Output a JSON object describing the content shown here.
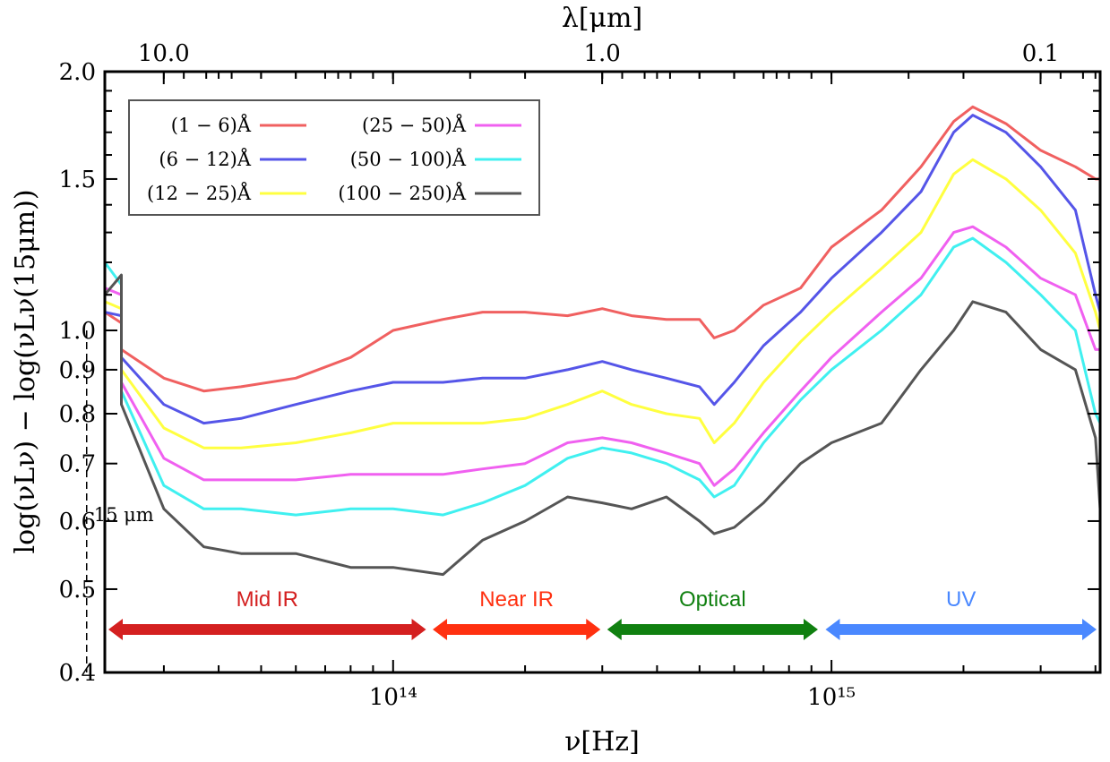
{
  "chart_data": {
    "type": "line",
    "title": "",
    "xlabel": "ν[Hz]",
    "ylabel": "log(νLν) − log(νLν(15μm))",
    "top_xlabel": "λ[μm]",
    "x_scale": "log",
    "y_scale": "log",
    "xlim": [
      22000000000000.0,
      4100000000000000.0
    ],
    "ylim": [
      0.4,
      2.0
    ],
    "grid": false,
    "legend_position": "top-left",
    "x_ticks": [
      {
        "value": 100000000000000.0,
        "label": "10¹⁴"
      },
      {
        "value": 1000000000000000.0,
        "label": "10¹⁵"
      }
    ],
    "top_ticks": [
      {
        "value": 10.0,
        "label": "10.0"
      },
      {
        "value": 1.0,
        "label": "1.0"
      },
      {
        "value": 0.1,
        "label": "0.1"
      }
    ],
    "y_ticks": [
      {
        "value": 0.4,
        "label": "0.4"
      },
      {
        "value": 0.5,
        "label": "0.5"
      },
      {
        "value": 0.6,
        "label": "0.6"
      },
      {
        "value": 0.7,
        "label": "0.7"
      },
      {
        "value": 0.8,
        "label": "0.8"
      },
      {
        "value": 0.9,
        "label": "0.9"
      },
      {
        "value": 1.0,
        "label": "1.0"
      },
      {
        "value": 1.5,
        "label": "1.5"
      },
      {
        "value": 2.0,
        "label": "2.0"
      }
    ],
    "reference_line": {
      "x_hz": 20000000000000.0,
      "label": "15 μm"
    },
    "bands": [
      {
        "label": "Mid IR",
        "from": 22000000000000.0,
        "to": 120000000000000.0,
        "color": "#d42020"
      },
      {
        "label": "Near IR",
        "from": 122000000000000.0,
        "to": 300000000000000.0,
        "color": "#ff3010"
      },
      {
        "label": "Optical",
        "from": 305000000000000.0,
        "to": 940000000000000.0,
        "color": "#108010"
      },
      {
        "label": "UV",
        "from": 960000000000000.0,
        "to": 4100000000000000.0,
        "color": "#4a88ff"
      }
    ],
    "series": [
      {
        "name": "(1 − 6)Å",
        "color": "#f06060",
        "x": [
          22000000000000.0,
          24000000000000.0,
          20000000000000.0,
          24000000000000.0,
          30000000000000.0,
          37000000000000.0,
          45000000000000.0,
          60000000000000.0,
          80000000000000.0,
          100000000000000.0,
          130000000000000.0,
          160000000000000.0,
          200000000000000.0,
          250000000000000.0,
          300000000000000.0,
          350000000000000.0,
          420000000000000.0,
          500000000000000.0,
          540000000000000.0,
          600000000000000.0,
          700000000000000.0,
          850000000000000.0,
          1000000000000000.0,
          1300000000000000.0,
          1600000000000000.0,
          1900000000000000.0,
          2100000000000000.0,
          2500000000000000.0,
          3000000000000000.0,
          3600000000000000.0,
          4000000000000000.0,
          4100000000000000.0
        ],
        "y": [
          1.05,
          1.02,
          1.0,
          0.95,
          0.88,
          0.85,
          0.86,
          0.88,
          0.93,
          1.0,
          1.03,
          1.05,
          1.05,
          1.04,
          1.06,
          1.04,
          1.03,
          1.03,
          0.98,
          1.0,
          1.07,
          1.12,
          1.25,
          1.38,
          1.55,
          1.75,
          1.82,
          1.74,
          1.62,
          1.55,
          1.5,
          1.5
        ]
      },
      {
        "name": "(6 − 12)Å",
        "color": "#5555e8",
        "x": [
          22000000000000.0,
          24000000000000.0,
          20000000000000.0,
          24000000000000.0,
          30000000000000.0,
          37000000000000.0,
          45000000000000.0,
          60000000000000.0,
          80000000000000.0,
          100000000000000.0,
          130000000000000.0,
          160000000000000.0,
          200000000000000.0,
          250000000000000.0,
          300000000000000.0,
          350000000000000.0,
          420000000000000.0,
          500000000000000.0,
          540000000000000.0,
          600000000000000.0,
          700000000000000.0,
          850000000000000.0,
          1000000000000000.0,
          1300000000000000.0,
          1600000000000000.0,
          1900000000000000.0,
          2100000000000000.0,
          2500000000000000.0,
          3000000000000000.0,
          3600000000000000.0,
          4000000000000000.0,
          4100000000000000.0
        ],
        "y": [
          1.05,
          1.04,
          1.0,
          0.93,
          0.82,
          0.78,
          0.79,
          0.82,
          0.85,
          0.87,
          0.87,
          0.88,
          0.88,
          0.9,
          0.92,
          0.9,
          0.88,
          0.86,
          0.82,
          0.87,
          0.96,
          1.05,
          1.15,
          1.3,
          1.45,
          1.7,
          1.78,
          1.7,
          1.55,
          1.38,
          1.1,
          1.05
        ]
      },
      {
        "name": "(12 − 25)Å",
        "color": "#ffff40",
        "x": [
          22000000000000.0,
          24000000000000.0,
          20000000000000.0,
          24000000000000.0,
          30000000000000.0,
          37000000000000.0,
          45000000000000.0,
          60000000000000.0,
          80000000000000.0,
          100000000000000.0,
          130000000000000.0,
          160000000000000.0,
          200000000000000.0,
          250000000000000.0,
          300000000000000.0,
          350000000000000.0,
          420000000000000.0,
          500000000000000.0,
          540000000000000.0,
          600000000000000.0,
          700000000000000.0,
          850000000000000.0,
          1000000000000000.0,
          1300000000000000.0,
          1600000000000000.0,
          1900000000000000.0,
          2100000000000000.0,
          2500000000000000.0,
          3000000000000000.0,
          3600000000000000.0,
          4000000000000000.0,
          4100000000000000.0
        ],
        "y": [
          1.08,
          1.06,
          1.0,
          0.9,
          0.77,
          0.73,
          0.73,
          0.74,
          0.76,
          0.78,
          0.78,
          0.78,
          0.79,
          0.82,
          0.85,
          0.82,
          0.8,
          0.79,
          0.74,
          0.78,
          0.87,
          0.97,
          1.05,
          1.18,
          1.3,
          1.52,
          1.58,
          1.5,
          1.38,
          1.23,
          1.05,
          1.0
        ]
      },
      {
        "name": "(25 − 50)Å",
        "color": "#f060f0",
        "x": [
          22000000000000.0,
          24000000000000.0,
          20000000000000.0,
          24000000000000.0,
          30000000000000.0,
          37000000000000.0,
          45000000000000.0,
          60000000000000.0,
          80000000000000.0,
          100000000000000.0,
          130000000000000.0,
          160000000000000.0,
          200000000000000.0,
          250000000000000.0,
          300000000000000.0,
          350000000000000.0,
          420000000000000.0,
          500000000000000.0,
          540000000000000.0,
          600000000000000.0,
          700000000000000.0,
          850000000000000.0,
          1000000000000000.0,
          1300000000000000.0,
          1600000000000000.0,
          1900000000000000.0,
          2100000000000000.0,
          2500000000000000.0,
          3000000000000000.0,
          3600000000000000.0,
          4000000000000000.0,
          4100000000000000.0
        ],
        "y": [
          1.12,
          1.1,
          1.0,
          0.87,
          0.71,
          0.67,
          0.67,
          0.67,
          0.68,
          0.68,
          0.68,
          0.69,
          0.7,
          0.74,
          0.75,
          0.74,
          0.72,
          0.7,
          0.66,
          0.69,
          0.76,
          0.85,
          0.93,
          1.05,
          1.15,
          1.3,
          1.32,
          1.25,
          1.15,
          1.1,
          0.95,
          0.95
        ]
      },
      {
        "name": "(50 − 100)Å",
        "color": "#40f0f0",
        "x": [
          22000000000000.0,
          24000000000000.0,
          20000000000000.0,
          24000000000000.0,
          30000000000000.0,
          37000000000000.0,
          45000000000000.0,
          60000000000000.0,
          80000000000000.0,
          100000000000000.0,
          130000000000000.0,
          160000000000000.0,
          200000000000000.0,
          250000000000000.0,
          300000000000000.0,
          350000000000000.0,
          420000000000000.0,
          500000000000000.0,
          540000000000000.0,
          600000000000000.0,
          700000000000000.0,
          850000000000000.0,
          1000000000000000.0,
          1300000000000000.0,
          1600000000000000.0,
          1900000000000000.0,
          2100000000000000.0,
          2500000000000000.0,
          3000000000000000.0,
          3600000000000000.0,
          4000000000000000.0,
          4100000000000000.0
        ],
        "y": [
          1.2,
          1.13,
          1.0,
          0.85,
          0.66,
          0.62,
          0.62,
          0.61,
          0.62,
          0.62,
          0.61,
          0.63,
          0.66,
          0.71,
          0.73,
          0.72,
          0.7,
          0.67,
          0.64,
          0.66,
          0.74,
          0.83,
          0.9,
          1.0,
          1.1,
          1.25,
          1.28,
          1.2,
          1.1,
          1.0,
          0.8,
          0.78
        ]
      },
      {
        "name": "(100 − 250)Å",
        "color": "#555555",
        "x": [
          22000000000000.0,
          24000000000000.0,
          20000000000000.0,
          24000000000000.0,
          30000000000000.0,
          37000000000000.0,
          45000000000000.0,
          60000000000000.0,
          80000000000000.0,
          100000000000000.0,
          130000000000000.0,
          160000000000000.0,
          200000000000000.0,
          250000000000000.0,
          300000000000000.0,
          350000000000000.0,
          420000000000000.0,
          500000000000000.0,
          540000000000000.0,
          600000000000000.0,
          700000000000000.0,
          850000000000000.0,
          1000000000000000.0,
          1300000000000000.0,
          1600000000000000.0,
          1900000000000000.0,
          2100000000000000.0,
          2500000000000000.0,
          3000000000000000.0,
          3600000000000000.0,
          4000000000000000.0,
          4100000000000000.0
        ],
        "y": [
          1.1,
          1.16,
          1.0,
          0.82,
          0.62,
          0.56,
          0.55,
          0.55,
          0.53,
          0.53,
          0.52,
          0.57,
          0.6,
          0.64,
          0.63,
          0.62,
          0.64,
          0.6,
          0.58,
          0.59,
          0.63,
          0.7,
          0.74,
          0.78,
          0.9,
          1.0,
          1.08,
          1.05,
          0.95,
          0.9,
          0.75,
          0.62
        ]
      }
    ]
  }
}
